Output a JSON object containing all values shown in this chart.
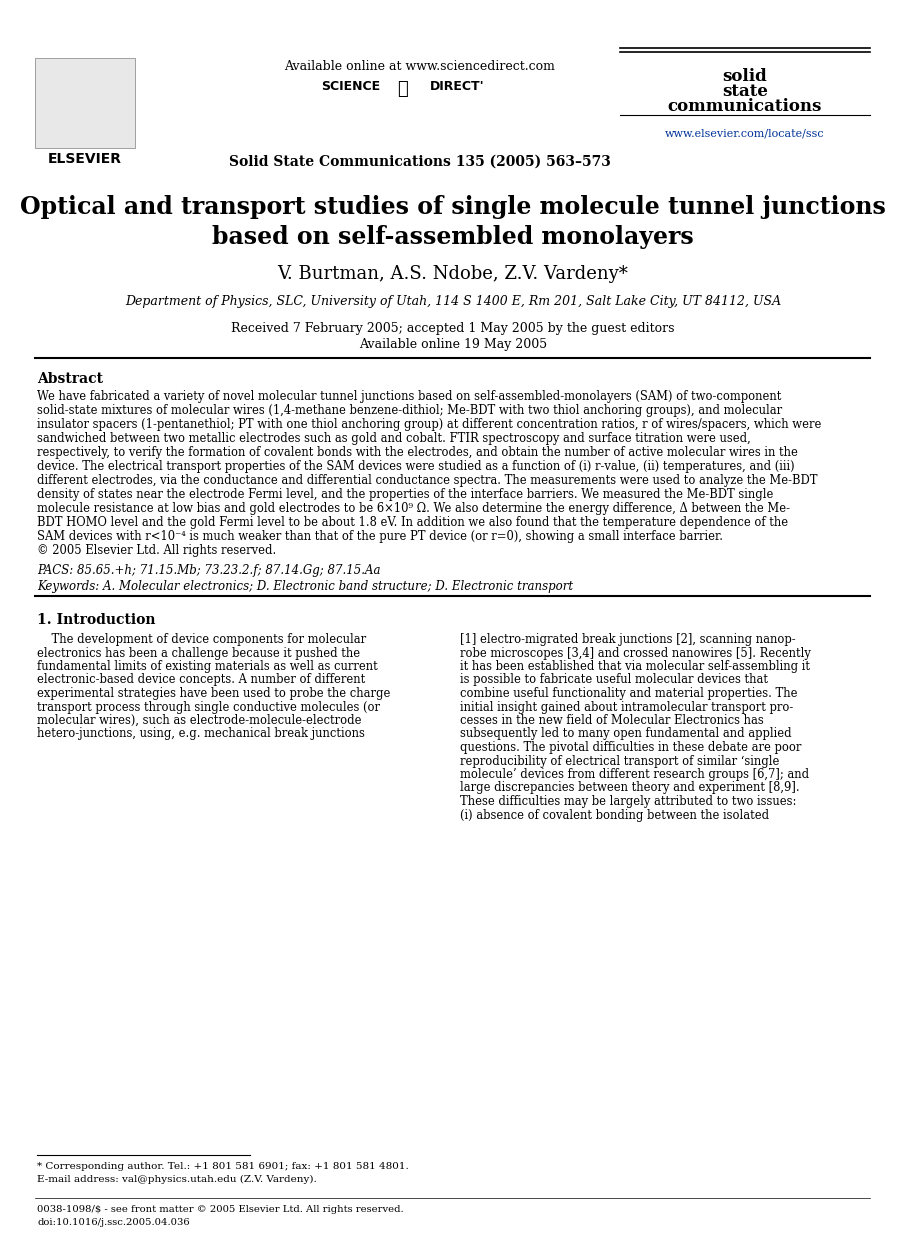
{
  "background_color": "#ffffff",
  "page_width": 9.07,
  "page_height": 12.38,
  "header": {
    "elsevier_logo_text": "ELSEVIER",
    "sciencedirect_text": "Available online at www.sciencedirect.com",
    "sciencedirect_logo": "SCIENCE DIRECT",
    "journal_name_line1": "solid",
    "journal_name_line2": "state",
    "journal_name_line3": "communications",
    "journal_info": "Solid State Communications 135 (2005) 563–573",
    "journal_url": "www.elsevier.com/locate/ssc",
    "journal_url_color": "#003399"
  },
  "title": "Optical and transport studies of single molecule tunnel junctions\nbased on self-assembled monolayers",
  "authors": "V. Burtman, A.S. Ndobe, Z.V. Vardeny*",
  "affiliation": "Department of Physics, SLC, University of Utah, 114 S 1400 E, Rm 201, Salt Lake City, UT 84112, USA",
  "received": "Received 7 February 2005; accepted 1 May 2005 by the guest editors",
  "available": "Available online 19 May 2005",
  "abstract_title": "Abstract",
  "abstract_text": "We have fabricated a variety of novel molecular tunnel junctions based on self-assembled-monolayers (SAM) of two-component solid-state mixtures of molecular wires (1,4-methane benzene-dithiol; Me-BDT with two thiol anchoring groups), and molecular insulator spacers (1-pentanethiol; PT with one thiol anchoring group) at different concentration ratios, r of wires/spacers, which were sandwiched between two metallic electrodes such as gold and cobalt. FTIR spectroscopy and surface titration were used, respectively, to verify the formation of covalent bonds with the electrodes, and obtain the number of active molecular wires in the device. The electrical transport properties of the SAM devices were studied as a function of (i) r-value, (ii) temperatures, and (iii) different electrodes, via the conductance and differential conductance spectra. The measurements were used to analyze the Me-BDT density of states near the electrode Fermi level, and the properties of the interface barriers. We measured the Me-BDT single molecule resistance at low bias and gold electrodes to be 6×10⁹ Ω. We also determine the energy difference, Δ between the Me-BDT HOMO level and the gold Fermi level to be about 1.8 eV. In addition we also found that the temperature dependence of the SAM devices with r<10⁻⁴ is much weaker than that of the pure PT device (or r=0), showing a small interface barrier.\n© 2005 Elsevier Ltd. All rights reserved.",
  "pacs": "PACS: 85.65.+h; 71.15.Mb; 73.23.2.f; 87.14.Gg; 87.15.Aa",
  "keywords": "Keywords: A. Molecular electronics; D. Electronic band structure; D. Electronic transport",
  "section1_title": "1. Introduction",
  "intro_left": "    The development of device components for molecular electronics has been a challenge because it pushed the fundamental limits of existing materials as well as current electronic-based device concepts. A number of different experimental strategies have been used to probe the charge transport process through single conductive molecules (or molecular wires), such as electrode-molecule-electrode hetero-junctions, using, e.g. mechanical break junctions",
  "intro_right": "[1] electro-migrated break junctions [2], scanning nanoprobe microscopes [3,4] and crossed nanowires [5]. Recently it has been established that via molecular self-assembling it is possible to fabricate useful molecular devices that combine useful functionality and material properties. The initial insight gained about intramolecular transport processes in the new field of Molecular Electronics has subsequently led to many open fundamental and applied questions. The pivotal difficulties in these debate are poor reproducibility of electrical transport of similar ‘single molecule’ devices from different research groups [6,7]; and large discrepancies between theory and experiment [8,9]. These difficulties may be largely attributed to two issues: (i) absence of covalent bonding between the isolated",
  "footnote_star": "* Corresponding author. Tel.: +1 801 581 6901; fax: +1 801 581 4801.",
  "footnote_email": "E-mail address: val@physics.utah.edu (Z.V. Vardeny).",
  "footer_issn": "0038-1098/$ - see front matter © 2005 Elsevier Ltd. All rights reserved.",
  "footer_doi": "doi:10.1016/j.ssc.2005.04.036",
  "ref_color": "#0000cc"
}
